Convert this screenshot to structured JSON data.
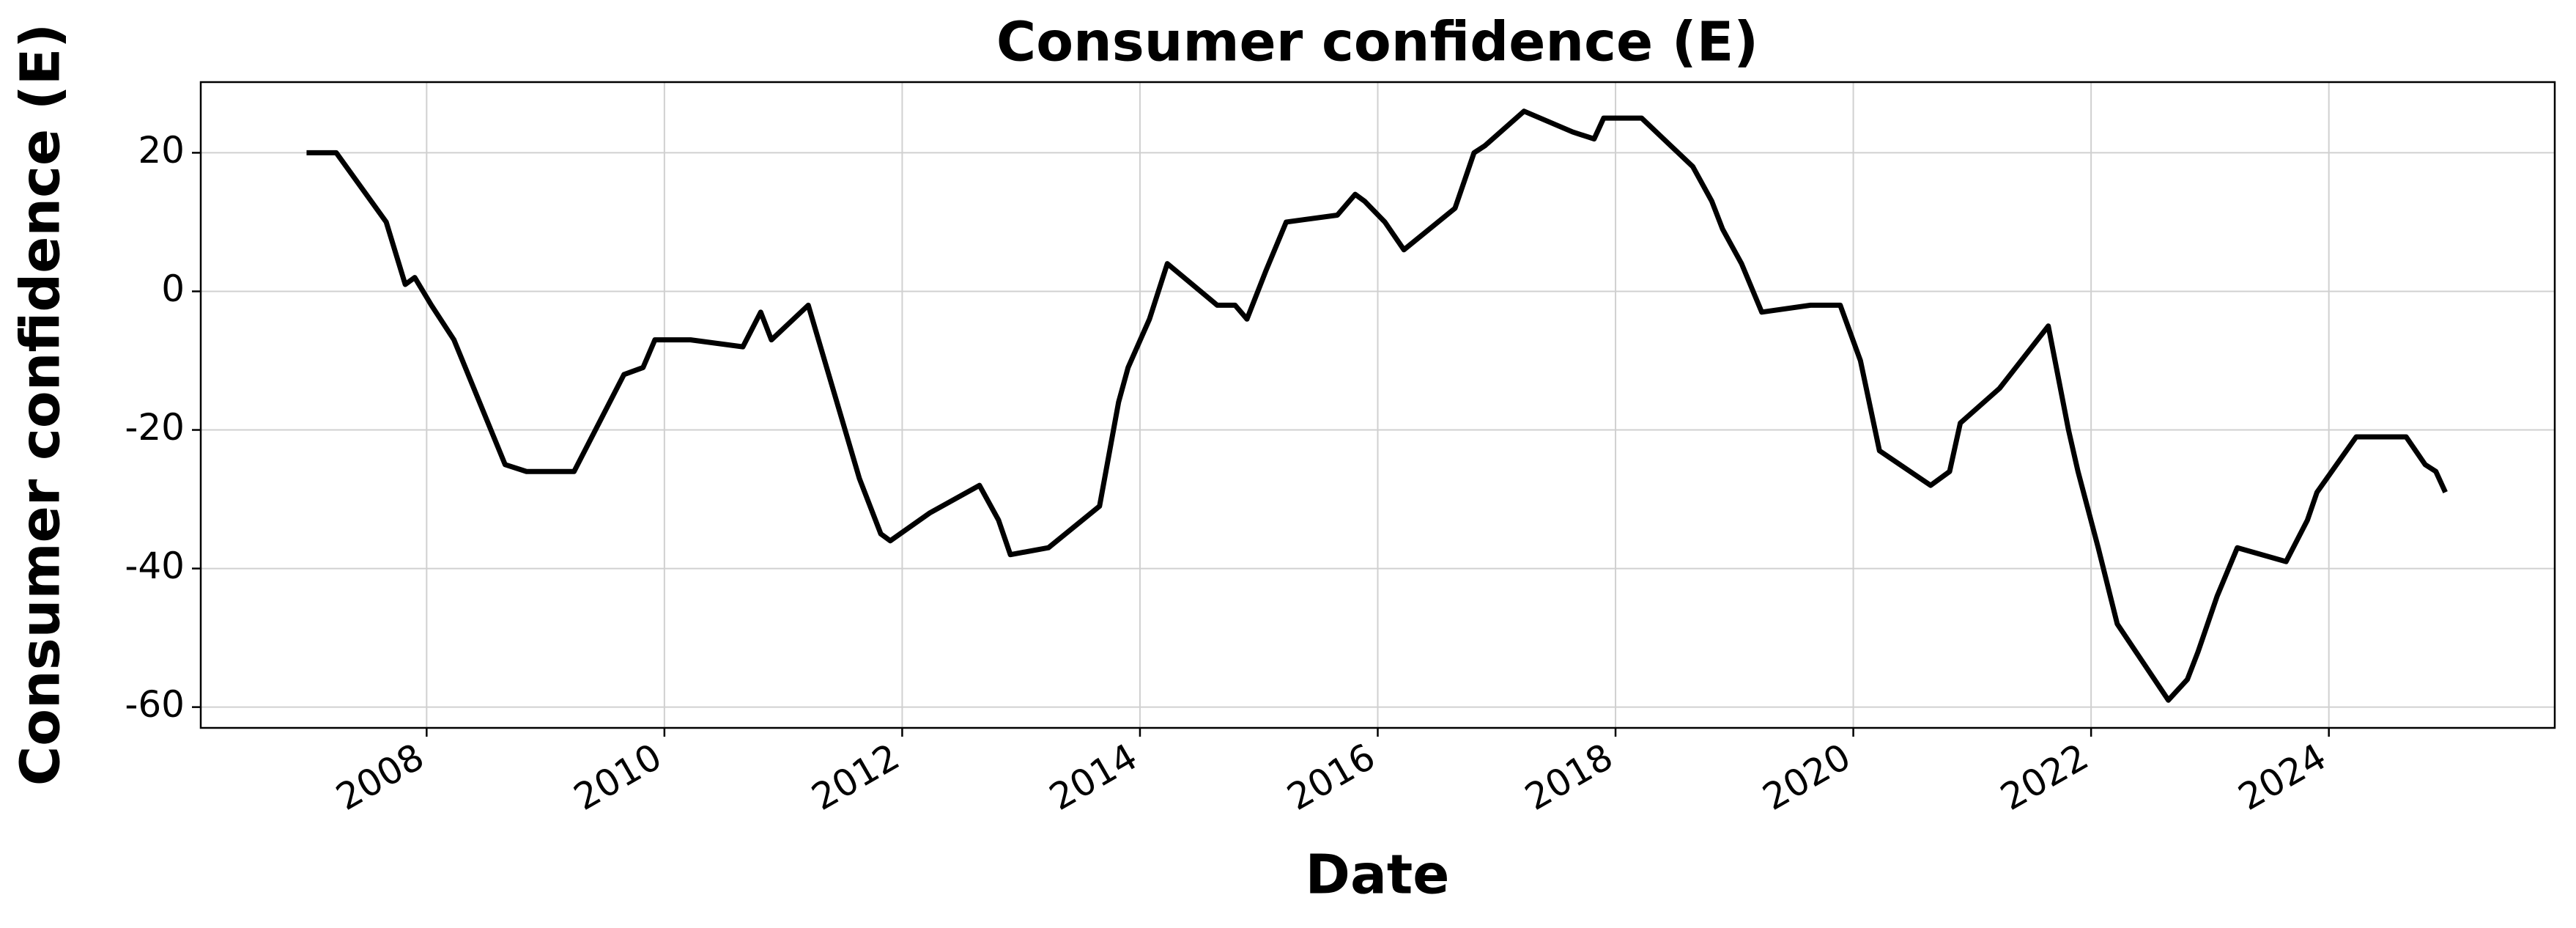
{
  "chart_data": {
    "type": "line",
    "title": "Consumer confidence (E)",
    "x_label": "Date",
    "y_label": "Consumer confidence (E)",
    "x": [
      2006.99,
      2007.24,
      2007.66,
      2007.82,
      2007.9,
      2008.04,
      2008.23,
      2008.66,
      2008.84,
      2009.24,
      2009.66,
      2009.82,
      2009.92,
      2010.22,
      2010.66,
      2010.81,
      2010.9,
      2011.21,
      2011.64,
      2011.82,
      2011.9,
      2012.23,
      2012.65,
      2012.81,
      2012.91,
      2013.23,
      2013.66,
      2013.82,
      2013.9,
      2014.08,
      2014.23,
      2014.65,
      2014.8,
      2014.9,
      2015.06,
      2015.23,
      2015.66,
      2015.81,
      2015.89,
      2016.06,
      2016.22,
      2016.65,
      2016.81,
      2016.9,
      2017.23,
      2017.64,
      2017.82,
      2017.9,
      2018.22,
      2018.65,
      2018.81,
      2018.9,
      2019.06,
      2019.23,
      2019.64,
      2019.89,
      2020.06,
      2020.22,
      2020.65,
      2020.81,
      2020.9,
      2021.23,
      2021.64,
      2021.81,
      2021.89,
      2022.06,
      2022.22,
      2022.65,
      2022.81,
      2022.9,
      2023.06,
      2023.23,
      2023.64,
      2023.82,
      2023.9,
      2024.23,
      2024.65,
      2024.81,
      2024.9,
      2024.98
    ],
    "series": [
      {
        "name": "Consumer confidence (E)",
        "color": "#000000",
        "values": [
          20,
          20,
          10,
          1,
          2,
          -2,
          -7,
          -25,
          -26,
          -26,
          -12,
          -11,
          -7,
          -7,
          -8,
          -3,
          -7,
          -2,
          -27,
          -35,
          -36,
          -32,
          -28,
          -33,
          -38,
          -37,
          -31,
          -16,
          -11,
          -4,
          4,
          -2,
          -2,
          -4,
          3,
          10,
          11,
          14,
          13,
          10,
          6,
          12,
          20,
          21,
          26,
          23,
          22,
          25,
          25,
          18,
          13,
          9,
          4,
          -3,
          -2,
          -2,
          -10,
          -23,
          -28,
          -26,
          -19,
          -14,
          -5,
          -20,
          -26,
          -37,
          -48,
          -59,
          -56,
          -52,
          -44,
          -37,
          -39,
          -33,
          -29,
          -21,
          -21,
          -25,
          -26,
          -29
        ]
      }
    ],
    "xlim": [
      2006.1,
      2025.9
    ],
    "xticks": [
      2008,
      2010,
      2012,
      2014,
      2016,
      2018,
      2020,
      2022,
      2024
    ],
    "ylim": [
      -63,
      30.2
    ],
    "yticks": [
      -60,
      -40,
      -20,
      0,
      20
    ],
    "grid": true
  }
}
